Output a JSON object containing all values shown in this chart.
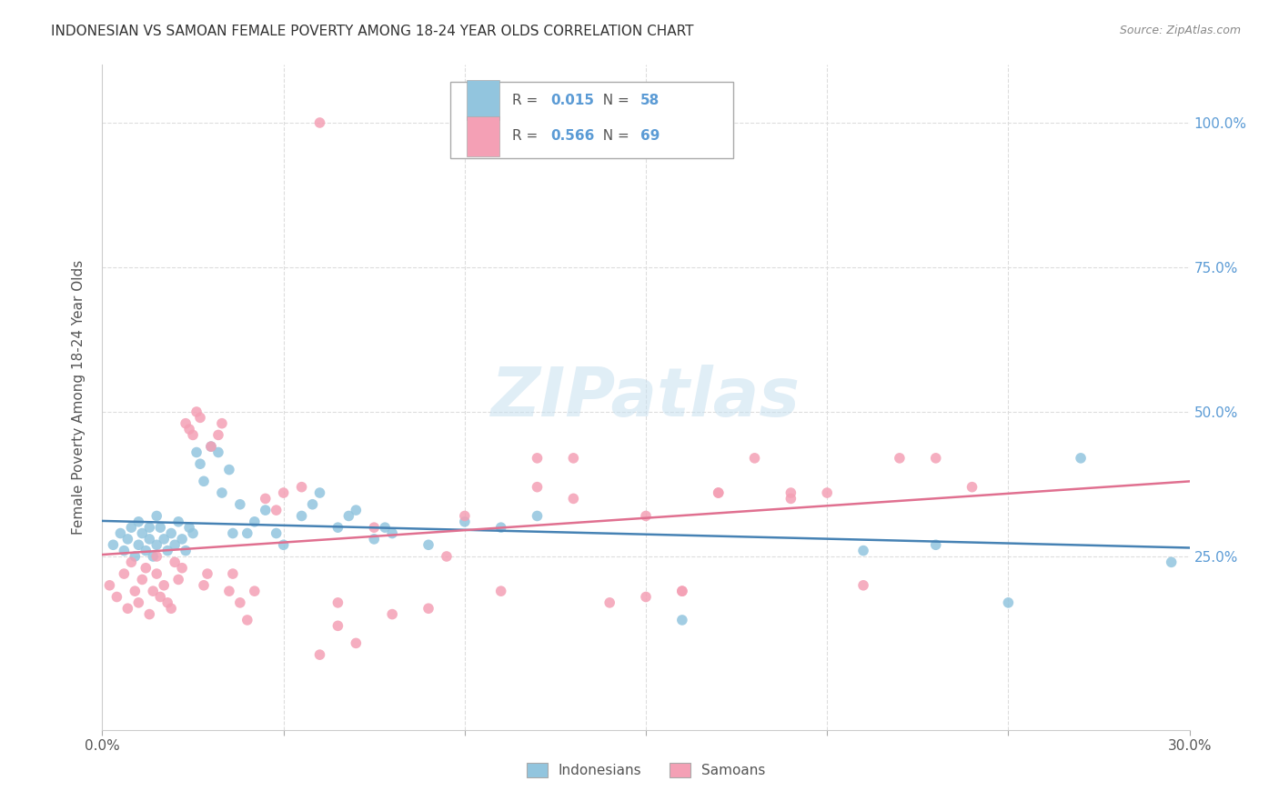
{
  "title": "INDONESIAN VS SAMOAN FEMALE POVERTY AMONG 18-24 YEAR OLDS CORRELATION CHART",
  "source": "Source: ZipAtlas.com",
  "ylabel": "Female Poverty Among 18-24 Year Olds",
  "ytick_labels": [
    "25.0%",
    "50.0%",
    "75.0%",
    "100.0%"
  ],
  "ytick_values": [
    0.25,
    0.5,
    0.75,
    1.0
  ],
  "xlim": [
    0.0,
    0.3
  ],
  "ylim": [
    -0.05,
    1.1
  ],
  "watermark": "ZIPatlas",
  "indonesian_color": "#92c5de",
  "samoan_color": "#f4a0b5",
  "indonesian_line_color": "#4682b4",
  "samoan_line_color": "#e07090",
  "indonesian_label": "Indonesians",
  "samoan_label": "Samoans",
  "r_indo": "0.015",
  "n_indo": "58",
  "r_samo": "0.566",
  "n_samo": "69",
  "indonesian_scatter_x": [
    0.003,
    0.005,
    0.006,
    0.007,
    0.008,
    0.009,
    0.01,
    0.01,
    0.011,
    0.012,
    0.013,
    0.013,
    0.014,
    0.015,
    0.015,
    0.016,
    0.017,
    0.018,
    0.019,
    0.02,
    0.021,
    0.022,
    0.023,
    0.024,
    0.025,
    0.026,
    0.027,
    0.028,
    0.03,
    0.032,
    0.033,
    0.035,
    0.036,
    0.038,
    0.04,
    0.042,
    0.045,
    0.048,
    0.05,
    0.055,
    0.058,
    0.06,
    0.065,
    0.068,
    0.07,
    0.075,
    0.078,
    0.08,
    0.09,
    0.1,
    0.11,
    0.12,
    0.16,
    0.21,
    0.23,
    0.25,
    0.27,
    0.295
  ],
  "indonesian_scatter_y": [
    0.27,
    0.29,
    0.26,
    0.28,
    0.3,
    0.25,
    0.31,
    0.27,
    0.29,
    0.26,
    0.28,
    0.3,
    0.25,
    0.32,
    0.27,
    0.3,
    0.28,
    0.26,
    0.29,
    0.27,
    0.31,
    0.28,
    0.26,
    0.3,
    0.29,
    0.43,
    0.41,
    0.38,
    0.44,
    0.43,
    0.36,
    0.4,
    0.29,
    0.34,
    0.29,
    0.31,
    0.33,
    0.29,
    0.27,
    0.32,
    0.34,
    0.36,
    0.3,
    0.32,
    0.33,
    0.28,
    0.3,
    0.29,
    0.27,
    0.31,
    0.3,
    0.32,
    0.14,
    0.26,
    0.27,
    0.17,
    0.42,
    0.24
  ],
  "samoan_scatter_x": [
    0.002,
    0.004,
    0.006,
    0.007,
    0.008,
    0.009,
    0.01,
    0.011,
    0.012,
    0.013,
    0.014,
    0.015,
    0.015,
    0.016,
    0.017,
    0.018,
    0.019,
    0.02,
    0.021,
    0.022,
    0.023,
    0.024,
    0.025,
    0.026,
    0.027,
    0.028,
    0.029,
    0.03,
    0.032,
    0.033,
    0.035,
    0.036,
    0.038,
    0.04,
    0.042,
    0.045,
    0.048,
    0.05,
    0.055,
    0.06,
    0.065,
    0.07,
    0.075,
    0.08,
    0.09,
    0.095,
    0.1,
    0.11,
    0.12,
    0.13,
    0.14,
    0.15,
    0.16,
    0.17,
    0.18,
    0.19,
    0.2,
    0.21,
    0.22,
    0.23,
    0.24,
    0.12,
    0.13,
    0.15,
    0.16,
    0.17,
    0.19,
    0.06,
    0.065
  ],
  "samoan_scatter_y": [
    0.2,
    0.18,
    0.22,
    0.16,
    0.24,
    0.19,
    0.17,
    0.21,
    0.23,
    0.15,
    0.19,
    0.22,
    0.25,
    0.18,
    0.2,
    0.17,
    0.16,
    0.24,
    0.21,
    0.23,
    0.48,
    0.47,
    0.46,
    0.5,
    0.49,
    0.2,
    0.22,
    0.44,
    0.46,
    0.48,
    0.19,
    0.22,
    0.17,
    0.14,
    0.19,
    0.35,
    0.33,
    0.36,
    0.37,
    0.08,
    0.17,
    0.1,
    0.3,
    0.15,
    0.16,
    0.25,
    0.32,
    0.19,
    0.37,
    0.35,
    0.17,
    0.32,
    0.19,
    0.36,
    0.42,
    0.35,
    0.36,
    0.2,
    0.42,
    0.42,
    0.37,
    0.42,
    0.42,
    0.18,
    0.19,
    0.36,
    0.36,
    1.0,
    0.13
  ]
}
